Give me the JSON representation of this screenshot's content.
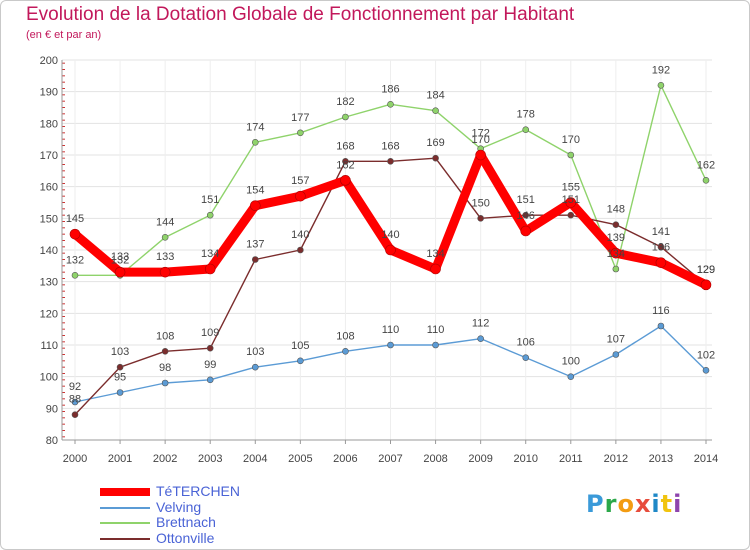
{
  "header": {
    "title": "Evolution de la Dotation Globale de Fonctionnement par Habitant",
    "subtitle": "(en € et par an)"
  },
  "logo": {
    "text": "Proxiti",
    "letters": [
      "P",
      "r",
      "o",
      "x",
      "i",
      "t",
      "i"
    ],
    "colors": [
      "#3a9ad9",
      "#2ba84a",
      "#f39c12",
      "#e74c3c",
      "#1e88c7",
      "#f1c40f",
      "#8e44ad"
    ]
  },
  "chart_data": {
    "type": "line",
    "title": "Evolution de la Dotation Globale de Fonctionnement par Habitant",
    "xlabel": "",
    "ylabel": "(en € et par an)",
    "ylim": [
      80,
      200
    ],
    "yticks": [
      80,
      90,
      100,
      110,
      120,
      130,
      140,
      150,
      160,
      170,
      180,
      190,
      200
    ],
    "categories": [
      "2000",
      "2001",
      "2002",
      "2003",
      "2004",
      "2005",
      "2006",
      "2007",
      "2008",
      "2009",
      "2010",
      "2011",
      "2012",
      "2013",
      "2014"
    ],
    "grid": true,
    "legend_position": "bottom-left",
    "series": [
      {
        "name": "TéTERCHEN",
        "color": "#ff0000",
        "bold": true,
        "values": [
          145,
          133,
          133,
          134,
          154,
          157,
          162,
          140,
          134,
          170,
          146,
          155,
          139,
          136,
          129
        ],
        "labels": [
          "145",
          "133",
          "133",
          "134",
          "154",
          "157",
          "162",
          "140",
          "134",
          "170",
          "146",
          "155",
          "139",
          "136",
          "129"
        ]
      },
      {
        "name": "Velving",
        "color": "#5b9bd5",
        "bold": false,
        "values": [
          92,
          95,
          98,
          99,
          103,
          105,
          108,
          110,
          110,
          112,
          106,
          100,
          107,
          116,
          102
        ],
        "labels": [
          "92",
          "95",
          "98",
          "99",
          "103",
          "105",
          "108",
          "110",
          "110",
          "112",
          "106",
          "100",
          "107",
          "116",
          "102"
        ]
      },
      {
        "name": "Brettnach",
        "color": "#8fd36b",
        "bold": false,
        "values": [
          132,
          132,
          144,
          151,
          174,
          177,
          182,
          186,
          184,
          172,
          178,
          170,
          134,
          192,
          162
        ],
        "labels": [
          "132",
          "132",
          "144",
          "151",
          "174",
          "177",
          "182",
          "186",
          "184",
          "172",
          "178",
          "170",
          "134",
          "192",
          "162"
        ]
      },
      {
        "name": "Ottonville",
        "color": "#7b2d2d",
        "bold": false,
        "values": [
          88,
          103,
          108,
          109,
          137,
          140,
          168,
          168,
          169,
          150,
          151,
          151,
          148,
          141,
          129
        ],
        "labels": [
          "88",
          "103",
          "108",
          "109",
          "137",
          "140",
          "168",
          "168",
          "169",
          "150",
          "151",
          "151",
          "148",
          "141",
          "129"
        ]
      }
    ]
  }
}
